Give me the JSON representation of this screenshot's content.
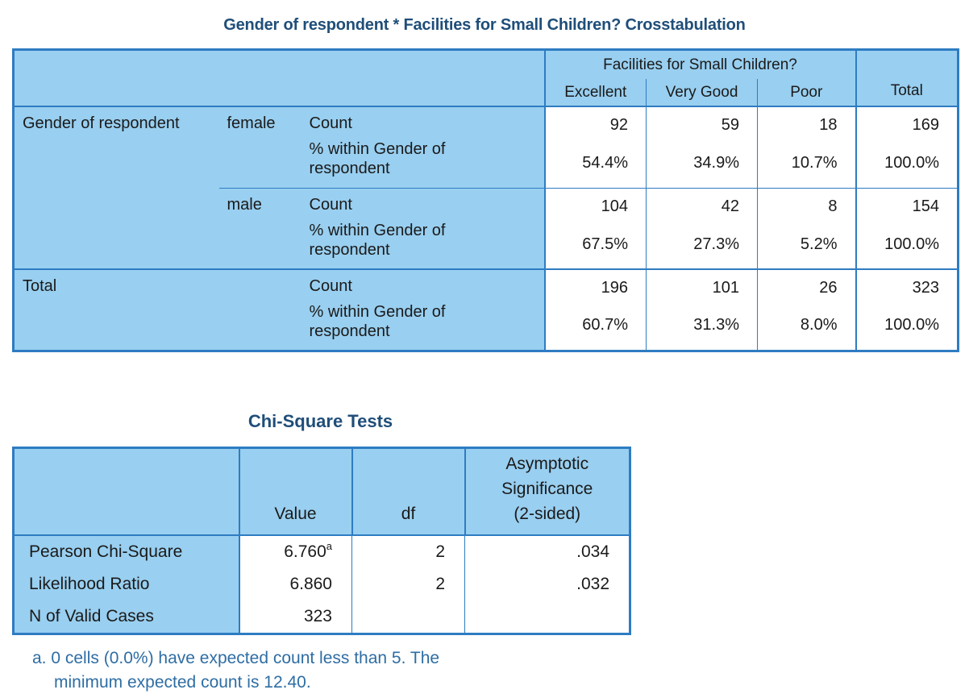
{
  "crosstab": {
    "title": "Gender of respondent * Facilities for Small Children? Crosstabulation",
    "column_group": "Facilities for Small Children?",
    "columns": [
      "Excellent",
      "Very Good",
      "Poor"
    ],
    "total_column": "Total",
    "row_variable": "Gender of respondent",
    "stat_count": "Count",
    "stat_pct": "% within Gender of respondent",
    "stat_pct_line1": "% within Gender of",
    "stat_pct_line2": "respondent",
    "rows": [
      {
        "label": "female",
        "count": [
          "92",
          "59",
          "18",
          "169"
        ],
        "pct": [
          "54.4%",
          "34.9%",
          "10.7%",
          "100.0%"
        ]
      },
      {
        "label": "male",
        "count": [
          "104",
          "42",
          "8",
          "154"
        ],
        "pct": [
          "67.5%",
          "27.3%",
          "5.2%",
          "100.0%"
        ]
      }
    ],
    "total": {
      "label": "Total",
      "count": [
        "196",
        "101",
        "26",
        "323"
      ],
      "pct": [
        "60.7%",
        "31.3%",
        "8.0%",
        "100.0%"
      ]
    }
  },
  "chisq": {
    "title": "Chi-Square Tests",
    "header_value": "Value",
    "header_df": "df",
    "header_sig_line1": "Asymptotic",
    "header_sig_line2": "Significance",
    "header_sig_line3": "(2-sided)",
    "rows": [
      {
        "label": "Pearson Chi-Square",
        "value": "6.760",
        "footmark": "a",
        "df": "2",
        "sig": ".034"
      },
      {
        "label": "Likelihood Ratio",
        "value": "6.860",
        "footmark": "",
        "df": "2",
        "sig": ".032"
      },
      {
        "label": "N of Valid Cases",
        "value": "323",
        "footmark": "",
        "df": "",
        "sig": ""
      }
    ],
    "footnote_line1": "a. 0 cells (0.0%) have expected count less than 5. The",
    "footnote_line2": "minimum expected count is 12.40."
  },
  "colors": {
    "header_fill": "#99cff0",
    "border": "#2e7cc2",
    "title": "#1f4e79",
    "footnote": "#2e6da4"
  }
}
